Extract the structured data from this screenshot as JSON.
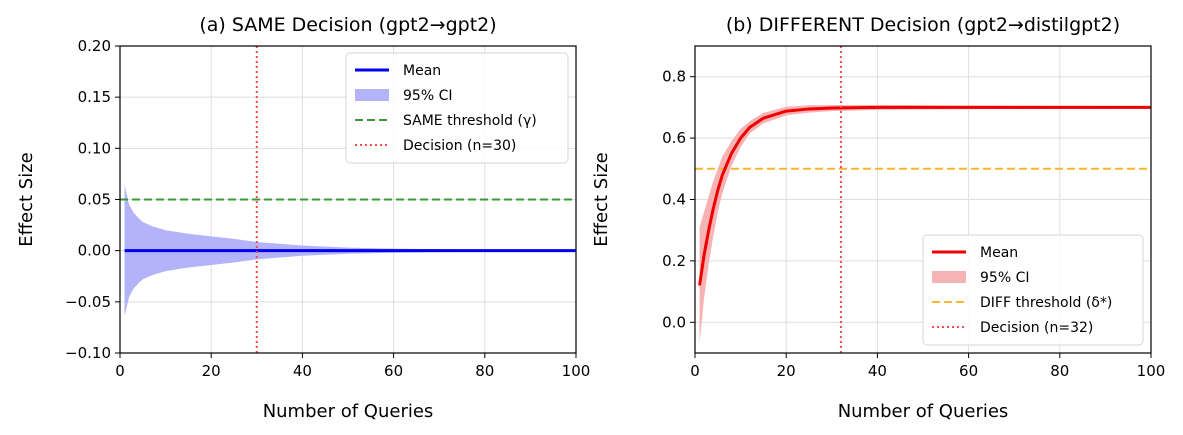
{
  "chart_data": [
    {
      "type": "line",
      "title": "(a) SAME Decision (gpt2→gpt2)",
      "xlabel": "Number of Queries",
      "ylabel": "Effect Size",
      "xlim": [
        0,
        100
      ],
      "ylim": [
        -0.1,
        0.2
      ],
      "xticks": [
        "0",
        "20",
        "40",
        "60",
        "80",
        "100"
      ],
      "yticks": [
        "−0.10",
        "−0.05",
        "0.00",
        "0.05",
        "0.10",
        "0.15",
        "0.20"
      ],
      "grid": true,
      "legend_position": "top-right",
      "legend": [
        "Mean",
        "95% CI",
        "SAME threshold (γ)",
        "Decision (n=30)"
      ],
      "series": [
        {
          "name": "Mean",
          "color": "#0000ee",
          "x": [
            1,
            100
          ],
          "y": [
            0.0,
            0.0
          ]
        },
        {
          "name": "95% CI",
          "color": "#b3b3fa",
          "x": [
            1,
            2,
            3,
            4,
            5,
            7,
            10,
            15,
            20,
            25,
            30,
            40,
            50,
            60,
            80,
            100
          ],
          "upper": [
            0.064,
            0.045,
            0.037,
            0.032,
            0.028,
            0.024,
            0.02,
            0.0165,
            0.014,
            0.0115,
            0.0085,
            0.005,
            0.003,
            0.002,
            0.0008,
            0.0003
          ],
          "lower": [
            -0.064,
            -0.045,
            -0.037,
            -0.032,
            -0.028,
            -0.024,
            -0.02,
            -0.0165,
            -0.014,
            -0.0115,
            -0.0085,
            -0.005,
            -0.003,
            -0.002,
            -0.0008,
            -0.0003
          ]
        }
      ],
      "threshold": {
        "name": "SAME threshold (γ)",
        "value": 0.05,
        "color": "#3a9a3a"
      },
      "decision": {
        "name": "Decision (n=30)",
        "value": 30,
        "color": "#f24b4b"
      }
    },
    {
      "type": "line",
      "title": "(b) DIFFERENT Decision (gpt2→distilgpt2)",
      "xlabel": "Number of Queries",
      "ylabel": "Effect Size",
      "xlim": [
        0,
        100
      ],
      "ylim": [
        -0.1,
        0.9
      ],
      "xticks": [
        "0",
        "20",
        "40",
        "60",
        "80",
        "100"
      ],
      "yticks": [
        "0.0",
        "0.2",
        "0.4",
        "0.6",
        "0.8"
      ],
      "grid": true,
      "legend_position": "bottom-right",
      "legend": [
        "Mean",
        "95% CI",
        "DIFF threshold (δ*)",
        "Decision (n=32)"
      ],
      "series": [
        {
          "name": "Mean",
          "color": "#ee0000",
          "x": [
            1,
            2,
            3,
            4,
            5,
            6,
            8,
            10,
            12,
            15,
            20,
            25,
            30,
            40,
            50,
            60,
            80,
            100
          ],
          "y": [
            0.12,
            0.22,
            0.3,
            0.37,
            0.43,
            0.48,
            0.55,
            0.6,
            0.635,
            0.665,
            0.688,
            0.695,
            0.698,
            0.7,
            0.7,
            0.7,
            0.7,
            0.7
          ]
        },
        {
          "name": "95% CI",
          "color": "#f7b3b3",
          "x": [
            1,
            2,
            3,
            4,
            5,
            6,
            8,
            10,
            12,
            15,
            20,
            25,
            30,
            40,
            50,
            60,
            80,
            100
          ],
          "upper": [
            0.31,
            0.36,
            0.41,
            0.46,
            0.5,
            0.54,
            0.59,
            0.63,
            0.655,
            0.682,
            0.702,
            0.707,
            0.708,
            0.708,
            0.707,
            0.706,
            0.705,
            0.704
          ],
          "lower": [
            -0.07,
            0.08,
            0.19,
            0.28,
            0.36,
            0.42,
            0.51,
            0.57,
            0.615,
            0.648,
            0.674,
            0.683,
            0.688,
            0.692,
            0.693,
            0.694,
            0.695,
            0.696
          ]
        }
      ],
      "threshold": {
        "name": "DIFF threshold (δ*)",
        "value": 0.5,
        "color": "#f7b733"
      },
      "decision": {
        "name": "Decision (n=32)",
        "value": 32,
        "color": "#f24b4b"
      }
    }
  ]
}
